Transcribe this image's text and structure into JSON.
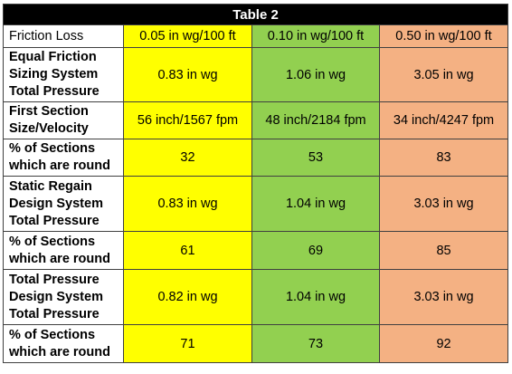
{
  "table": {
    "title": "Table 2",
    "header": {
      "label": "Friction Loss",
      "columns": [
        "0.05 in wg/100 ft",
        "0.10 in wg/100 ft",
        "0.50 in wg/100 ft"
      ]
    },
    "rows": [
      {
        "label_lines": [
          "Equal Friction",
          "Sizing System",
          "Total Pressure"
        ],
        "values": [
          "0.83 in wg",
          "1.06 in wg",
          "3.05 in wg"
        ]
      },
      {
        "label_lines": [
          "First Section",
          "Size/Velocity"
        ],
        "values": [
          "56 inch/1567 fpm",
          "48 inch/2184 fpm",
          "34 inch/4247 fpm"
        ]
      },
      {
        "label_lines": [
          "% of Sections",
          "which are round"
        ],
        "values": [
          "32",
          "53",
          "83"
        ]
      },
      {
        "label_lines": [
          "Static Regain",
          "Design System",
          "Total Pressure"
        ],
        "values": [
          "0.83 in wg",
          "1.04 in wg",
          "3.03 in wg"
        ]
      },
      {
        "label_lines": [
          "% of Sections",
          "which are round"
        ],
        "values": [
          "61",
          "69",
          "85"
        ]
      },
      {
        "label_lines": [
          "Total Pressure",
          "Design System",
          "Total Pressure"
        ],
        "values": [
          "0.82 in wg",
          "1.04 in wg",
          "3.03 in wg"
        ]
      },
      {
        "label_lines": [
          "% of Sections",
          "which are round"
        ],
        "values": [
          "71",
          "73",
          "92"
        ]
      }
    ],
    "column_colors": [
      "#ffff00",
      "#92d050",
      "#f4b183"
    ],
    "title_bg": "#000000"
  }
}
